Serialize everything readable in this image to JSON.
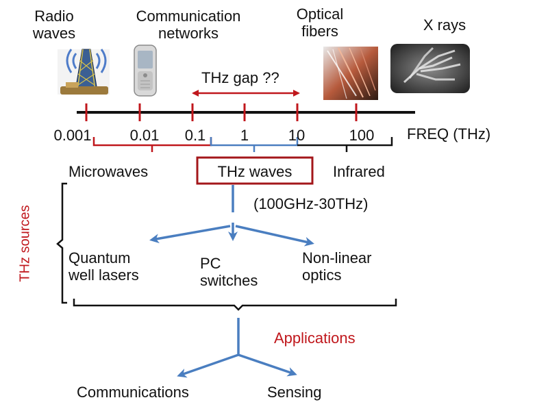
{
  "top_labels": {
    "radio": [
      "Radio",
      "waves"
    ],
    "comm": [
      "Communication",
      "networks"
    ],
    "optical": [
      "Optical",
      "fibers"
    ],
    "xray": "X rays"
  },
  "gap_label": "THz gap ??",
  "ticks": [
    "0.001",
    "0.01",
    "0.1",
    "1",
    "10",
    "100"
  ],
  "freq_label": "FREQ (THz)",
  "bands": {
    "microwaves": "Microwaves",
    "thz": "THz waves",
    "infrared": "Infrared"
  },
  "thz_range": "(100GHz-30THz)",
  "sources_label": "THz sources",
  "sources": {
    "qwl": [
      "Quantum",
      "well lasers"
    ],
    "pc": [
      "PC",
      "switches"
    ],
    "nlo": [
      "Non-linear",
      "optics"
    ]
  },
  "applications_label": "Applications",
  "applications": {
    "communications": "Communications",
    "sensing": "Sensing"
  },
  "colors": {
    "red": "#c0171c",
    "dark_red": "#a3161a",
    "blue": "#4a7ec0",
    "black": "#111111"
  },
  "icons": [
    "radio-tower-icon",
    "mobile-phone-icon",
    "optical-fiber-icon",
    "xray-hand-icon"
  ]
}
